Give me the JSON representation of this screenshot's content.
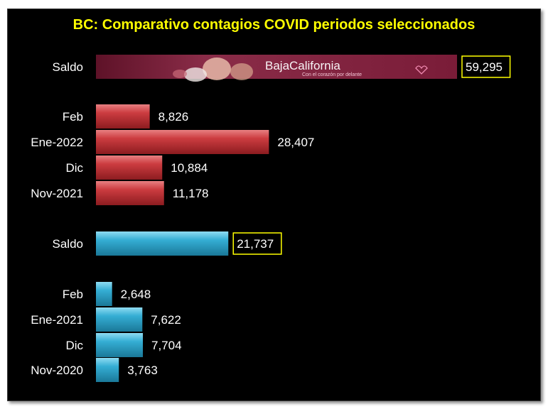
{
  "chart_data": {
    "type": "bar",
    "orientation": "horizontal",
    "title": "BC: Comparativo contagios COVID periodos seleccionados",
    "xlim": [
      0,
      60000
    ],
    "grid": false,
    "groups": [
      {
        "color": "#b83236",
        "bars": [
          {
            "label": "Saldo",
            "value": 59295,
            "highlight": true,
            "banner_image": true
          },
          {
            "label": "Feb",
            "value": 8826
          },
          {
            "label": "Ene-2022",
            "value": 28407
          },
          {
            "label": "Dic",
            "value": 10884
          },
          {
            "label": "Nov-2021",
            "value": 11178
          }
        ]
      },
      {
        "color": "#2aa0c8",
        "bars": [
          {
            "label": "Saldo",
            "value": 21737,
            "highlight": true
          },
          {
            "label": "Feb",
            "value": 2648
          },
          {
            "label": "Ene-2021",
            "value": 7622
          },
          {
            "label": "Dic",
            "value": 7704
          },
          {
            "label": "Nov-2020",
            "value": 3763
          }
        ]
      }
    ],
    "banner_text": "BajaCalifornia",
    "banner_subtext": "Con el corazón por delante"
  },
  "colors": {
    "title": "#ffff00",
    "labels": "#ffffff",
    "highlight_border": "#ffff00",
    "background": "#000000"
  }
}
